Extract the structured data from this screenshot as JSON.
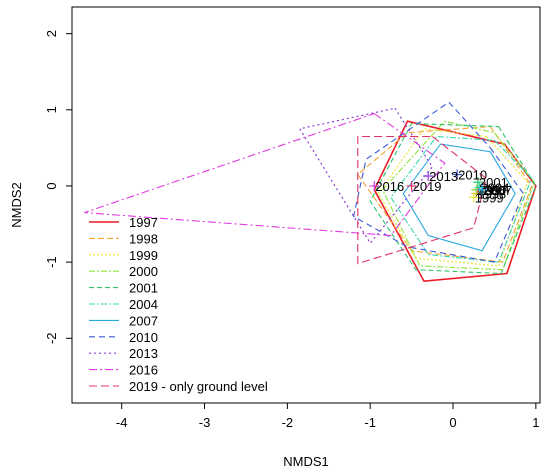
{
  "chart_data": {
    "type": "scatter",
    "title": "",
    "xlabel": "NMDS1",
    "ylabel": "NMDS2",
    "xlim": [
      -4.6,
      1.05
    ],
    "ylim": [
      -2.85,
      2.35
    ],
    "x_ticks": [
      -4,
      -3,
      -2,
      -1,
      0,
      1
    ],
    "y_ticks": [
      -2,
      -1,
      0,
      1,
      2
    ],
    "grid": false,
    "legend_position": "bottom-left",
    "series": [
      {
        "name": "1997",
        "color": "#ee1c25",
        "dash": "",
        "width": 1.6,
        "hull": [
          [
            0.62,
            0.55
          ],
          [
            1.0,
            0.0
          ],
          [
            0.65,
            -1.15
          ],
          [
            -0.35,
            -1.25
          ],
          [
            -0.95,
            -0.05
          ],
          [
            -0.55,
            0.85
          ]
        ],
        "label": "1997",
        "label_xy": [
          0.3,
          -0.05
        ]
      },
      {
        "name": "1998",
        "color": "#f4a233",
        "dash": "6,3",
        "width": 1.1,
        "hull": [
          [
            0.45,
            0.78
          ],
          [
            0.95,
            0.0
          ],
          [
            0.6,
            -1.0
          ],
          [
            -0.5,
            -0.85
          ],
          [
            -1.15,
            0.15
          ],
          [
            -0.55,
            0.7
          ]
        ],
        "label": "1998",
        "label_xy": [
          0.28,
          -0.1
        ]
      },
      {
        "name": "1999",
        "color": "#e6e635",
        "dash": "2,2",
        "width": 1.2,
        "hull": [
          [
            0.4,
            0.65
          ],
          [
            0.9,
            0.05
          ],
          [
            0.55,
            -1.05
          ],
          [
            -0.45,
            -0.95
          ],
          [
            -0.9,
            -0.1
          ],
          [
            -0.35,
            0.75
          ]
        ],
        "label": "1999",
        "label_xy": [
          0.25,
          -0.15
        ]
      },
      {
        "name": "2000",
        "color": "#8ee63a",
        "dash": "6,2,2,2",
        "width": 1.1,
        "hull": [
          [
            0.5,
            0.7
          ],
          [
            0.98,
            0.05
          ],
          [
            0.6,
            -1.1
          ],
          [
            -0.4,
            -1.05
          ],
          [
            -0.85,
            -0.05
          ],
          [
            -0.1,
            0.85
          ]
        ],
        "label": "2000",
        "label_xy": [
          0.28,
          -0.05
        ]
      },
      {
        "name": "2001",
        "color": "#2ec46a",
        "dash": "5,3",
        "width": 1.1,
        "hull": [
          [
            0.55,
            0.78
          ],
          [
            1.0,
            0.0
          ],
          [
            0.58,
            -1.15
          ],
          [
            -0.45,
            -1.1
          ],
          [
            -1.0,
            -0.2
          ],
          [
            -0.5,
            0.82
          ]
        ],
        "label": "2001",
        "label_xy": [
          0.3,
          0.05
        ]
      },
      {
        "name": "2004",
        "color": "#38d6b0",
        "dash": "6,2,2,2",
        "width": 1.1,
        "hull": [
          [
            0.5,
            0.6
          ],
          [
            0.95,
            0.1
          ],
          [
            0.55,
            -1.0
          ],
          [
            -0.3,
            -0.9
          ],
          [
            -0.75,
            -0.15
          ],
          [
            -0.2,
            0.65
          ]
        ],
        "label": "2004",
        "label_xy": [
          0.32,
          -0.02
        ]
      },
      {
        "name": "2007",
        "color": "#2aa8e0",
        "dash": "",
        "width": 1.1,
        "hull": [
          [
            0.45,
            0.45
          ],
          [
            0.75,
            -0.1
          ],
          [
            0.35,
            -0.85
          ],
          [
            -0.3,
            -0.65
          ],
          [
            -0.6,
            -0.1
          ],
          [
            -0.15,
            0.55
          ]
        ],
        "label": "2007",
        "label_xy": [
          0.35,
          -0.05
        ]
      },
      {
        "name": "2010",
        "color": "#3c5ad8",
        "dash": "6,4",
        "width": 1.1,
        "hull": [
          [
            0.45,
            0.5
          ],
          [
            0.85,
            -0.1
          ],
          [
            0.5,
            -1.0
          ],
          [
            -0.55,
            -0.8
          ],
          [
            -1.2,
            -0.4
          ],
          [
            -1.05,
            0.35
          ],
          [
            -0.05,
            1.1
          ]
        ],
        "label": "2010",
        "label_xy": [
          0.05,
          0.15
        ]
      },
      {
        "name": "2013",
        "color": "#8a3cd8",
        "dash": "2,3",
        "width": 1.2,
        "hull": [
          [
            -0.7,
            1.02
          ],
          [
            -0.25,
            0.25
          ],
          [
            -1.0,
            -0.75
          ],
          [
            -1.85,
            0.75
          ]
        ],
        "label": "2013",
        "label_xy": [
          -0.3,
          0.13
        ]
      },
      {
        "name": "2016",
        "color": "#e03ae0",
        "dash": "8,3,2,3",
        "width": 1.1,
        "hull": [
          [
            -0.95,
            0.95
          ],
          [
            -0.1,
            0.3
          ],
          [
            -0.75,
            -0.65
          ],
          [
            -4.45,
            -0.35
          ]
        ],
        "label": "2016",
        "label_xy": [
          -0.95,
          0.0
        ]
      },
      {
        "name": "2019 - only ground level",
        "color": "#e0306a",
        "dash": "8,4",
        "width": 1.1,
        "hull": [
          [
            -0.25,
            0.65
          ],
          [
            0.4,
            0.1
          ],
          [
            0.25,
            -0.55
          ],
          [
            -1.15,
            -1.02
          ],
          [
            -1.15,
            0.65
          ]
        ],
        "label": "2019",
        "label_xy": [
          -0.5,
          0.0
        ]
      }
    ]
  }
}
